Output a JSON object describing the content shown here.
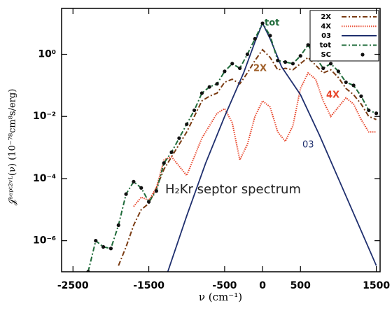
{
  "chart_data": {
    "type": "line",
    "x_label": "ν (cm⁻¹)",
    "y_label": "𝒥ˢᵉᵖᵗ²ᵛᴸ(ν) (10⁻⁷⁸cm⁸s/erg)",
    "log_y": true,
    "legend": "top-right",
    "xlim": [
      -2650,
      1550
    ],
    "xticks": [
      -2500,
      -1500,
      -500,
      0,
      500,
      1500
    ],
    "ylim": [
      1e-07,
      30
    ],
    "yticks": [
      {
        "value": 1,
        "label": "10⁰"
      },
      {
        "value": 0.01,
        "label": "10⁻²"
      },
      {
        "value": 0.0001,
        "label": "10⁻⁴"
      },
      {
        "value": 1e-06,
        "label": "10⁻⁶"
      }
    ],
    "annotations": {
      "tot": "tot",
      "2X": "2X",
      "4X": "4X",
      "03": "03",
      "caption": "H₂Kr  septor spectrum"
    },
    "series": [
      {
        "name": "2X",
        "color": "#7a3b12",
        "style": "dash-dot",
        "x": [
          -1900,
          -1800,
          -1700,
          -1600,
          -1500,
          -1400,
          -1300,
          -1200,
          -1100,
          -1000,
          -900,
          -800,
          -700,
          -600,
          -500,
          -400,
          -300,
          -200,
          -100,
          0,
          100,
          200,
          300,
          400,
          500,
          600,
          700,
          800,
          900,
          1000,
          1100,
          1200,
          1300,
          1400,
          1500
        ],
        "values": [
          1.58e-07,
          6.31e-07,
          3.16e-06,
          1e-05,
          1.58e-05,
          5.01e-05,
          0.0002,
          0.000501,
          0.00126,
          0.00316,
          0.01,
          0.0316,
          0.0447,
          0.0562,
          0.126,
          0.158,
          0.112,
          0.251,
          0.631,
          1.41,
          0.794,
          0.316,
          0.355,
          0.316,
          0.501,
          0.794,
          0.447,
          0.251,
          0.316,
          0.178,
          0.0794,
          0.0501,
          0.0251,
          0.01,
          0.00794
        ]
      },
      {
        "name": "4X",
        "color": "#e8452a",
        "style": "dotted",
        "x": [
          -1700,
          -1600,
          -1500,
          -1400,
          -1300,
          -1200,
          -1100,
          -1000,
          -900,
          -800,
          -700,
          -600,
          -500,
          -400,
          -300,
          -200,
          -100,
          0,
          100,
          200,
          300,
          400,
          500,
          600,
          700,
          800,
          900,
          1000,
          1100,
          1200,
          1300,
          1400,
          1500
        ],
        "values": [
          1.26e-05,
          2.51e-05,
          2e-05,
          5.01e-05,
          0.000398,
          0.000501,
          0.000251,
          0.000126,
          0.000501,
          0.002,
          0.00501,
          0.0126,
          0.0178,
          0.00631,
          0.000398,
          0.00126,
          0.01,
          0.0316,
          0.02,
          0.00316,
          0.00158,
          0.00501,
          0.0794,
          0.251,
          0.158,
          0.0316,
          0.01,
          0.02,
          0.0398,
          0.0251,
          0.00794,
          0.00316,
          0.00316
        ]
      },
      {
        "name": "03",
        "color": "#1f2f6e",
        "style": "solid",
        "x": [
          -1250,
          -1000,
          -750,
          -500,
          -250,
          -100,
          0,
          100,
          250,
          500,
          750,
          1000,
          1250,
          1500
        ],
        "values": [
          1e-07,
          6.31e-06,
          0.000316,
          0.01,
          0.251,
          2.51,
          10,
          3.16,
          0.398,
          0.0501,
          0.00251,
          0.0001,
          3.98e-06,
          1.58e-07
        ]
      },
      {
        "name": "tot",
        "color": "#1f6b3a",
        "style": "dash-dot",
        "x": [
          -2300,
          -2200,
          -2100,
          -2000,
          -1900,
          -1800,
          -1700,
          -1600,
          -1500,
          -1400,
          -1300,
          -1200,
          -1100,
          -1000,
          -900,
          -800,
          -700,
          -600,
          -500,
          -400,
          -300,
          -200,
          -100,
          0,
          100,
          200,
          300,
          400,
          500,
          600,
          700,
          800,
          900,
          1000,
          1100,
          1200,
          1300,
          1400,
          1500
        ],
        "values": [
          1e-07,
          1e-06,
          6.31e-07,
          5.62e-07,
          3.16e-06,
          3.16e-05,
          7.94e-05,
          5.01e-05,
          1.78e-05,
          3.98e-05,
          0.000316,
          0.000708,
          0.002,
          0.00562,
          0.0158,
          0.0562,
          0.0891,
          0.112,
          0.282,
          0.501,
          0.355,
          1,
          3.16,
          10,
          3.98,
          0.631,
          0.562,
          0.501,
          0.891,
          2.0,
          0.794,
          0.355,
          0.501,
          0.282,
          0.126,
          0.1,
          0.0447,
          0.0158,
          0.0126
        ]
      },
      {
        "name": "SC",
        "color": "#111111",
        "style": "markers",
        "x": [
          -2300,
          -2200,
          -2100,
          -2000,
          -1900,
          -1800,
          -1700,
          -1600,
          -1500,
          -1400,
          -1300,
          -1200,
          -1100,
          -1000,
          -900,
          -800,
          -700,
          -600,
          -500,
          -400,
          -300,
          -200,
          -100,
          0,
          100,
          200,
          300,
          400,
          500,
          600,
          700,
          800,
          900,
          1000,
          1100,
          1200,
          1300,
          1400,
          1500
        ],
        "values": [
          1e-07,
          1e-06,
          6.31e-07,
          5.62e-07,
          3.16e-06,
          3.16e-05,
          7.94e-05,
          5.01e-05,
          1.78e-05,
          3.98e-05,
          0.000316,
          0.000708,
          0.002,
          0.00562,
          0.0158,
          0.0562,
          0.0891,
          0.112,
          0.282,
          0.501,
          0.355,
          1,
          3.16,
          10,
          3.98,
          0.631,
          0.562,
          0.501,
          0.891,
          2.0,
          0.794,
          0.355,
          0.501,
          0.282,
          0.126,
          0.1,
          0.0447,
          0.0158,
          0.0126
        ]
      }
    ]
  }
}
